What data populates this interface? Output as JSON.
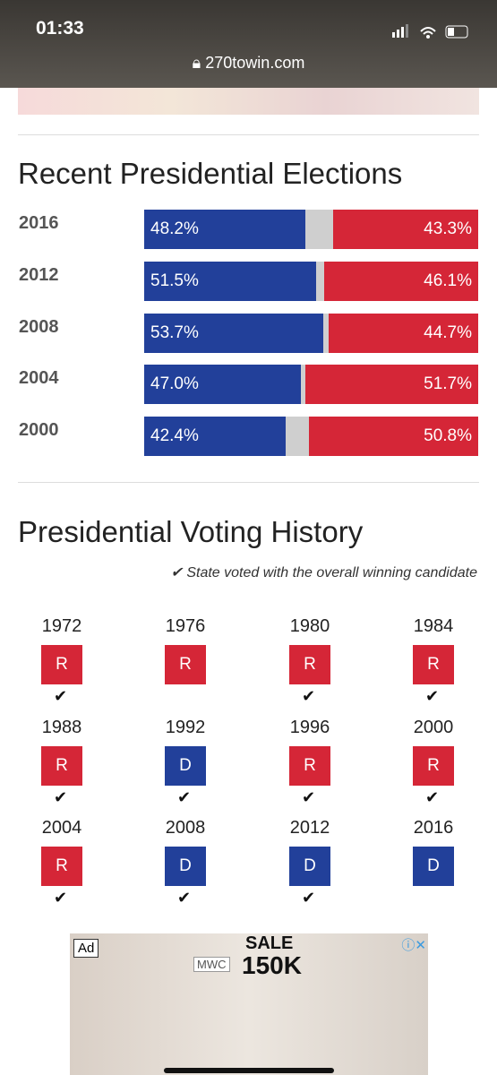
{
  "status_bar": {
    "time": "01:33",
    "url": "270towin.com"
  },
  "recent": {
    "title": "Recent Presidential Elections",
    "rows": [
      {
        "year": "2016",
        "dem": 48.2,
        "dem_label": "48.2%",
        "rep": 43.3,
        "rep_label": "43.3%"
      },
      {
        "year": "2012",
        "dem": 51.5,
        "dem_label": "51.5%",
        "rep": 46.1,
        "rep_label": "46.1%"
      },
      {
        "year": "2008",
        "dem": 53.7,
        "dem_label": "53.7%",
        "rep": 44.7,
        "rep_label": "44.7%"
      },
      {
        "year": "2004",
        "dem": 47.0,
        "dem_label": "47.0%",
        "rep": 51.7,
        "rep_label": "51.7%"
      },
      {
        "year": "2000",
        "dem": 42.4,
        "dem_label": "42.4%",
        "rep": 50.8,
        "rep_label": "50.8%"
      }
    ]
  },
  "history": {
    "title": "Presidential Voting History",
    "note": "State voted with the overall winning candidate",
    "entries": [
      {
        "year": "1972",
        "party": "R",
        "with_winner": true
      },
      {
        "year": "1976",
        "party": "R",
        "with_winner": false
      },
      {
        "year": "1980",
        "party": "R",
        "with_winner": true
      },
      {
        "year": "1984",
        "party": "R",
        "with_winner": true
      },
      {
        "year": "1988",
        "party": "R",
        "with_winner": true
      },
      {
        "year": "1992",
        "party": "D",
        "with_winner": true
      },
      {
        "year": "1996",
        "party": "R",
        "with_winner": true
      },
      {
        "year": "2000",
        "party": "R",
        "with_winner": true
      },
      {
        "year": "2004",
        "party": "R",
        "with_winner": true
      },
      {
        "year": "2008",
        "party": "D",
        "with_winner": true
      },
      {
        "year": "2012",
        "party": "D",
        "with_winner": true
      },
      {
        "year": "2016",
        "party": "D",
        "with_winner": false
      }
    ]
  },
  "ad": {
    "badge": "Ad",
    "sale": "SALE",
    "amount": "150K",
    "brand": "MWC"
  }
}
